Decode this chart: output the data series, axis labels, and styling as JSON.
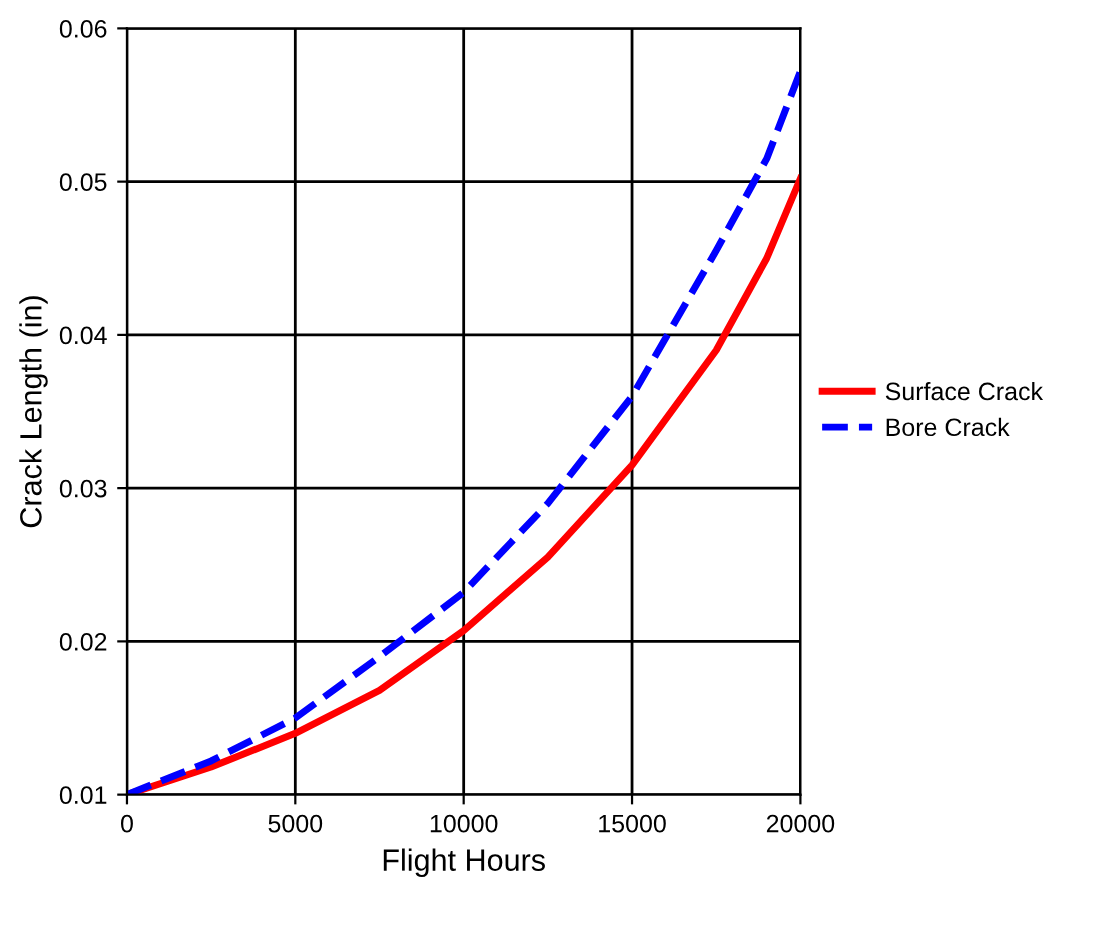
{
  "chart_data": {
    "type": "line",
    "xlabel": "Flight Hours",
    "ylabel": "Crack Length (in)",
    "xlim": [
      0,
      20000
    ],
    "xticks": [
      0,
      5000,
      10000,
      15000,
      20000
    ],
    "ylim": [
      0.01,
      0.06
    ],
    "yticks": [
      0.01,
      0.02,
      0.03,
      0.04,
      0.05,
      0.06
    ],
    "grid": true,
    "legend": "right",
    "x": [
      0,
      2500,
      5000,
      7500,
      10000,
      12500,
      15000,
      17500,
      19000,
      20000
    ],
    "series": [
      {
        "name": "Surface Crack",
        "color": "#ff0000",
        "line_style": "solid",
        "values": [
          0.01,
          0.0118,
          0.014,
          0.0168,
          0.0207,
          0.0255,
          0.0315,
          0.039,
          0.045,
          0.0502
        ]
      },
      {
        "name": "Bore Crack",
        "color": "#0000ff",
        "line_style": "dashed",
        "values": [
          0.01,
          0.0122,
          0.015,
          0.019,
          0.0232,
          0.029,
          0.036,
          0.0455,
          0.0515,
          0.0572
        ]
      }
    ]
  }
}
